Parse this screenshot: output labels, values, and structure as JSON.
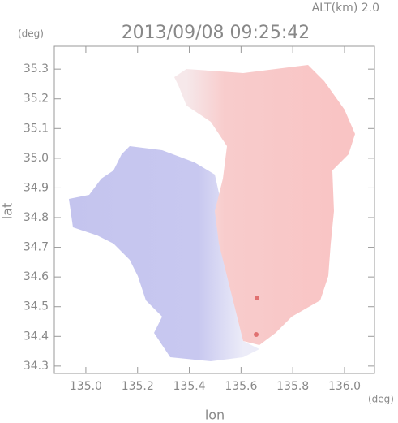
{
  "chart_data": {
    "type": "map",
    "title": "2013/09/08 09:25:42",
    "subtitle": "ALT(km) 2.0",
    "x_label": "lon",
    "y_label": "lat",
    "x_unit": "(deg)",
    "y_unit": "(deg)",
    "xlim": [
      134.878,
      136.116
    ],
    "ylim": [
      34.275,
      35.377
    ],
    "xticks": [
      {
        "value": 135,
        "label": "135.0"
      },
      135.2,
      135.4,
      135.6,
      135.8,
      {
        "value": 136,
        "label": "136.0"
      }
    ],
    "yticks": [
      34.3,
      34.4,
      34.5,
      34.6,
      34.7,
      34.8,
      34.9,
      {
        "value": 35,
        "label": "35.0"
      },
      35.1,
      35.2,
      35.3
    ]
  }
}
